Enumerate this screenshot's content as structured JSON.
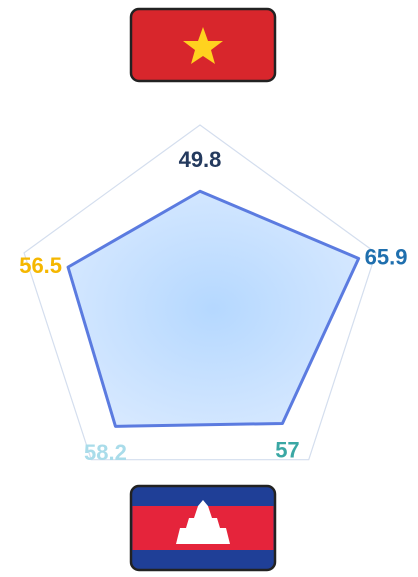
{
  "chart_data": {
    "type": "radar",
    "values": [
      49.8,
      65.9,
      57,
      58.2,
      56.5
    ],
    "label_colors": [
      "#243a5e",
      "#1f6fae",
      "#3aa7a4",
      "#a9dcea",
      "#f5b700"
    ],
    "color": "#5b7be0",
    "rlim": [
      10,
      72
    ]
  }
}
